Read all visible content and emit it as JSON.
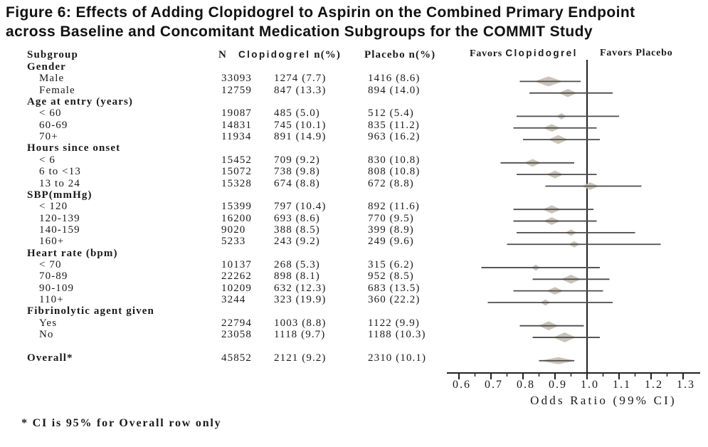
{
  "figure": {
    "title_lines": [
      "Figure 6: Effects of Adding Clopidogrel to Aspirin on the Combined Primary Endpoint",
      "across Baseline and Concomitant Medication Subgroups for the COMMIT Study"
    ],
    "footnote": "* CI is 95% for Overall row only"
  },
  "table_headers": {
    "subgroup": "Subgroup",
    "n": "N",
    "clopidogrel_word": "Clopidogrel",
    "clopidogrel_suffix": "n(%)",
    "placebo": "Placebo n(%)"
  },
  "plot_headers": {
    "favors_left_word": "Favors",
    "favors_left_drug": "Clopidogrel",
    "favors_right": "Favors Placebo"
  },
  "chart_data": {
    "type": "forest",
    "xlabel": "Odds Ratio (99% CI)",
    "x_ticks": [
      "0.6",
      "0.7",
      "0.8",
      "0.9",
      "1.0",
      "1.1",
      "1.2",
      "1.3"
    ],
    "xlim": [
      0.6,
      1.3
    ],
    "reference_line": 1.0,
    "groups": [
      {
        "header": "Gender",
        "rows": [
          {
            "label": "Male",
            "n": "33093",
            "clopidogrel": "1274 (7.7)",
            "placebo": "1416 (8.6)",
            "or": 0.88,
            "ci": [
              0.79,
              0.98
            ],
            "marker": 20
          },
          {
            "label": "Female",
            "n": "12759",
            "clopidogrel": "847 (13.3)",
            "placebo": "894 (14.0)",
            "or": 0.94,
            "ci": [
              0.82,
              1.08
            ],
            "marker": 13
          }
        ]
      },
      {
        "header": "Age at entry (years)",
        "rows": [
          {
            "label": "< 60",
            "n": "19087",
            "clopidogrel": "485 (5.0)",
            "placebo": "512 (5.4)",
            "or": 0.92,
            "ci": [
              0.78,
              1.1
            ],
            "marker": 7
          },
          {
            "label": "60-69",
            "n": "14831",
            "clopidogrel": "745 (10.1)",
            "placebo": "835 (11.2)",
            "or": 0.89,
            "ci": [
              0.77,
              1.03
            ],
            "marker": 12
          },
          {
            "label": "70+",
            "n": "11934",
            "clopidogrel": "891 (14.9)",
            "placebo": "963 (16.2)",
            "or": 0.91,
            "ci": [
              0.8,
              1.04
            ],
            "marker": 14
          }
        ]
      },
      {
        "header": "Hours since onset",
        "rows": [
          {
            "label": "< 6",
            "n": "15452",
            "clopidogrel": "709 (9.2)",
            "placebo": "830 (10.8)",
            "or": 0.83,
            "ci": [
              0.73,
              0.96
            ],
            "marker": 12
          },
          {
            "label": "6 to <13",
            "n": "15072",
            "clopidogrel": "738 (9.8)",
            "placebo": "808 (10.8)",
            "or": 0.9,
            "ci": [
              0.78,
              1.03
            ],
            "marker": 12
          },
          {
            "label": "13 to 24",
            "n": "15328",
            "clopidogrel": "674 (8.8)",
            "placebo": "672 (8.8)",
            "or": 1.01,
            "ci": [
              0.87,
              1.17
            ],
            "marker": 12
          }
        ]
      },
      {
        "header": "SBP(mmHg)",
        "rows": [
          {
            "label": "< 120",
            "n": "15399",
            "clopidogrel": "797 (10.4)",
            "placebo": "892 (11.6)",
            "or": 0.89,
            "ci": [
              0.77,
              1.02
            ],
            "marker": 13
          },
          {
            "label": "120-139",
            "n": "16200",
            "clopidogrel": "693 (8.6)",
            "placebo": "770 (9.5)",
            "or": 0.89,
            "ci": [
              0.77,
              1.03
            ],
            "marker": 12
          },
          {
            "label": "140-159",
            "n": "9020",
            "clopidogrel": "388 (8.5)",
            "placebo": "399 (8.9)",
            "or": 0.95,
            "ci": [
              0.78,
              1.15
            ],
            "marker": 8
          },
          {
            "label": "160+",
            "n": "5233",
            "clopidogrel": "243 (9.2)",
            "placebo": "249 (9.6)",
            "or": 0.96,
            "ci": [
              0.75,
              1.23
            ],
            "marker": 8
          }
        ]
      },
      {
        "header": "Heart rate (bpm)",
        "rows": [
          {
            "label": "< 70",
            "n": "10137",
            "clopidogrel": "268 (5.3)",
            "placebo": "315 (6.2)",
            "or": 0.84,
            "ci": [
              0.67,
              1.04
            ],
            "marker": 6
          },
          {
            "label": "70-89",
            "n": "22262",
            "clopidogrel": "898 (8.1)",
            "placebo": "952 (8.5)",
            "or": 0.95,
            "ci": [
              0.83,
              1.07
            ],
            "marker": 14
          },
          {
            "label": "90-109",
            "n": "10209",
            "clopidogrel": "632 (12.3)",
            "placebo": "683 (13.5)",
            "or": 0.9,
            "ci": [
              0.77,
              1.05
            ],
            "marker": 12
          },
          {
            "label": "110+",
            "n": "3244",
            "clopidogrel": "323 (19.9)",
            "placebo": "360 (22.2)",
            "or": 0.87,
            "ci": [
              0.69,
              1.08
            ],
            "marker": 7
          }
        ]
      },
      {
        "header": "Fibrinolytic agent given",
        "rows": [
          {
            "label": "Yes",
            "n": "22794",
            "clopidogrel": "1003 (8.8)",
            "placebo": "1122 (9.9)",
            "or": 0.88,
            "ci": [
              0.79,
              0.99
            ],
            "marker": 14
          },
          {
            "label": "No",
            "n": "23058",
            "clopidogrel": "1118 (9.7)",
            "placebo": "1188 (10.3)",
            "or": 0.93,
            "ci": [
              0.83,
              1.04
            ],
            "marker": 16
          }
        ]
      }
    ],
    "overall": {
      "label": "Overall*",
      "n": "45852",
      "clopidogrel": "2121 (9.2)",
      "placebo": "2310 (10.1)",
      "or": 0.91,
      "ci": [
        0.85,
        0.96
      ]
    }
  },
  "colors": {
    "diamond": "#c8c0b4",
    "ci_line": "#4c4c4c",
    "axis": "#222222",
    "text": "#1a1a1a"
  }
}
